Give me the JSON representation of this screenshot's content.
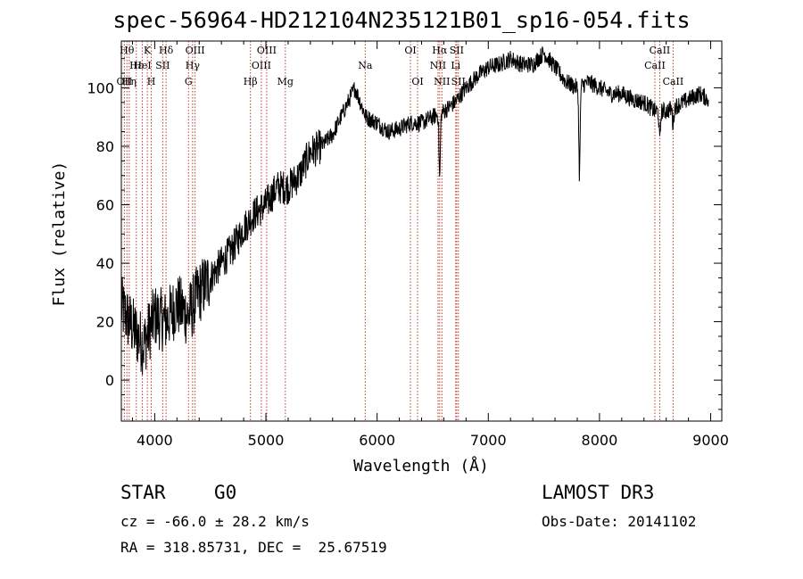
{
  "title": "spec-56964-HD212104N235121B01_sp16-054.fits",
  "chart_data": {
    "type": "line",
    "xlabel": "Wavelength (Å)",
    "ylabel": "Flux (relative)",
    "xlim": [
      3700,
      9100
    ],
    "ylim": [
      -14,
      116
    ],
    "xticks": [
      4000,
      5000,
      6000,
      7000,
      8000,
      9000
    ],
    "yticks": [
      0,
      20,
      40,
      60,
      80,
      100
    ],
    "continuum_x": [
      3700,
      3800,
      3900,
      4000,
      4100,
      4200,
      4300,
      4400,
      4500,
      4600,
      4700,
      4800,
      4900,
      5000,
      5100,
      5200,
      5300,
      5400,
      5500,
      5600,
      5700,
      5800,
      5900,
      6000,
      6100,
      6200,
      6300,
      6400,
      6500,
      6600,
      6700,
      6800,
      6900,
      7000,
      7100,
      7200,
      7300,
      7400,
      7500,
      7600,
      7700,
      7800,
      7900,
      8000,
      8100,
      8200,
      8300,
      8400,
      8500,
      8600,
      8700,
      8800,
      8900,
      8980
    ],
    "continuum_y": [
      25,
      18,
      12,
      22,
      20,
      26,
      22,
      30,
      35,
      40,
      45,
      52,
      57,
      60,
      66,
      66,
      70,
      78,
      80,
      84,
      92,
      100,
      90,
      88,
      85,
      86,
      88,
      88,
      90,
      92,
      95,
      100,
      104,
      107,
      108,
      110,
      108,
      108,
      112,
      107,
      102,
      100,
      102,
      100,
      98,
      98,
      96,
      95,
      92,
      92,
      94,
      96,
      98,
      96
    ],
    "absorption_features": [
      {
        "wavelength": 6563,
        "depth": 22
      },
      {
        "wavelength": 7820,
        "depth": 30
      },
      {
        "wavelength": 8542,
        "depth": 10
      },
      {
        "wavelength": 8662,
        "depth": 6
      }
    ],
    "line_markers": [
      {
        "wavelength": 3727,
        "labels": [
          "OII"
        ],
        "row": 2
      },
      {
        "wavelength": 3750,
        "labels": [
          "Hθ"
        ],
        "row": 0
      },
      {
        "wavelength": 3771,
        "labels": [
          "Hη"
        ],
        "row": 2
      },
      {
        "wavelength": 3835,
        "labels": [
          "Hε"
        ],
        "row": 1
      },
      {
        "wavelength": 3889,
        "labels": [
          "HeI"
        ],
        "row": 1
      },
      {
        "wavelength": 3934,
        "labels": [
          "K"
        ],
        "row": 0
      },
      {
        "wavelength": 3969,
        "labels": [
          "H"
        ],
        "row": 2
      },
      {
        "wavelength": 4072,
        "labels": [
          "SII"
        ],
        "row": 1
      },
      {
        "wavelength": 4102,
        "labels": [
          "Hδ"
        ],
        "row": 0
      },
      {
        "wavelength": 4304,
        "labels": [
          "G"
        ],
        "row": 2
      },
      {
        "wavelength": 4341,
        "labels": [
          "Hγ"
        ],
        "row": 1
      },
      {
        "wavelength": 4363,
        "labels": [
          "OIII"
        ],
        "row": 0
      },
      {
        "wavelength": 4861,
        "labels": [
          "Hβ"
        ],
        "row": 2
      },
      {
        "wavelength": 4959,
        "labels": [
          "OIII"
        ],
        "row": 1
      },
      {
        "wavelength": 5007,
        "labels": [
          "OIII"
        ],
        "row": 0
      },
      {
        "wavelength": 5175,
        "labels": [
          "Mg"
        ],
        "row": 2
      },
      {
        "wavelength": 5893,
        "labels": [
          "Na"
        ],
        "row": 1
      },
      {
        "wavelength": 6300,
        "labels": [
          "OI"
        ],
        "row": 0
      },
      {
        "wavelength": 6364,
        "labels": [
          "OI"
        ],
        "row": 2
      },
      {
        "wavelength": 6548,
        "labels": [
          "NII"
        ],
        "row": 1
      },
      {
        "wavelength": 6563,
        "labels": [
          "Hα"
        ],
        "row": 0
      },
      {
        "wavelength": 6583,
        "labels": [
          "NII"
        ],
        "row": 2
      },
      {
        "wavelength": 6707,
        "labels": [
          "Li"
        ],
        "row": 1
      },
      {
        "wavelength": 6716,
        "labels": [
          "SII"
        ],
        "row": 0
      },
      {
        "wavelength": 6731,
        "labels": [
          "SII"
        ],
        "row": 2
      },
      {
        "wavelength": 8498,
        "labels": [
          "CaII"
        ],
        "row": 1
      },
      {
        "wavelength": 8542,
        "labels": [
          "CaII"
        ],
        "row": 0
      },
      {
        "wavelength": 8662,
        "labels": [
          "CaII"
        ],
        "row": 2
      }
    ]
  },
  "info": {
    "object_class": "STAR",
    "subclass": "G0",
    "survey": "LAMOST DR3",
    "cz": "cz = -66.0 ± 28.2 km/s",
    "obs_date": "Obs-Date: 20141102",
    "coords": "RA = 318.85731, DEC =  25.67519"
  }
}
